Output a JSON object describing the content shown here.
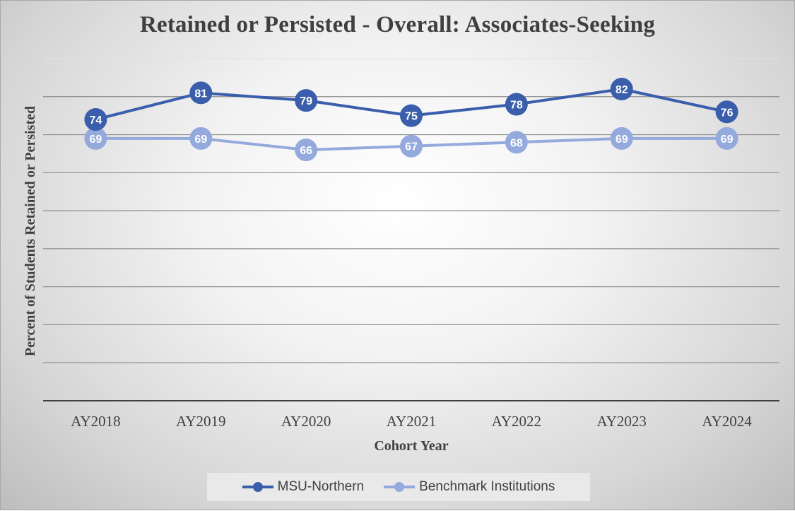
{
  "chart_data": {
    "type": "line",
    "title": "Retained or Persisted - Overall: Associates-Seeking",
    "xlabel": "Cohort Year",
    "ylabel": "Percent of Students Retained or Persisted",
    "categories": [
      "AY2018",
      "AY2019",
      "AY2020",
      "AY2021",
      "AY2022",
      "AY2023",
      "AY2024"
    ],
    "ylim": [
      0,
      90
    ],
    "grid": true,
    "legend_position": "bottom",
    "series": [
      {
        "name": "MSU-Northern",
        "values": [
          74,
          81,
          79,
          75,
          78,
          82,
          76
        ],
        "color": "#3a5eab"
      },
      {
        "name": "Benchmark Institutions",
        "values": [
          69,
          69,
          66,
          67,
          68,
          69,
          69
        ],
        "color": "#94a9dc"
      }
    ]
  }
}
